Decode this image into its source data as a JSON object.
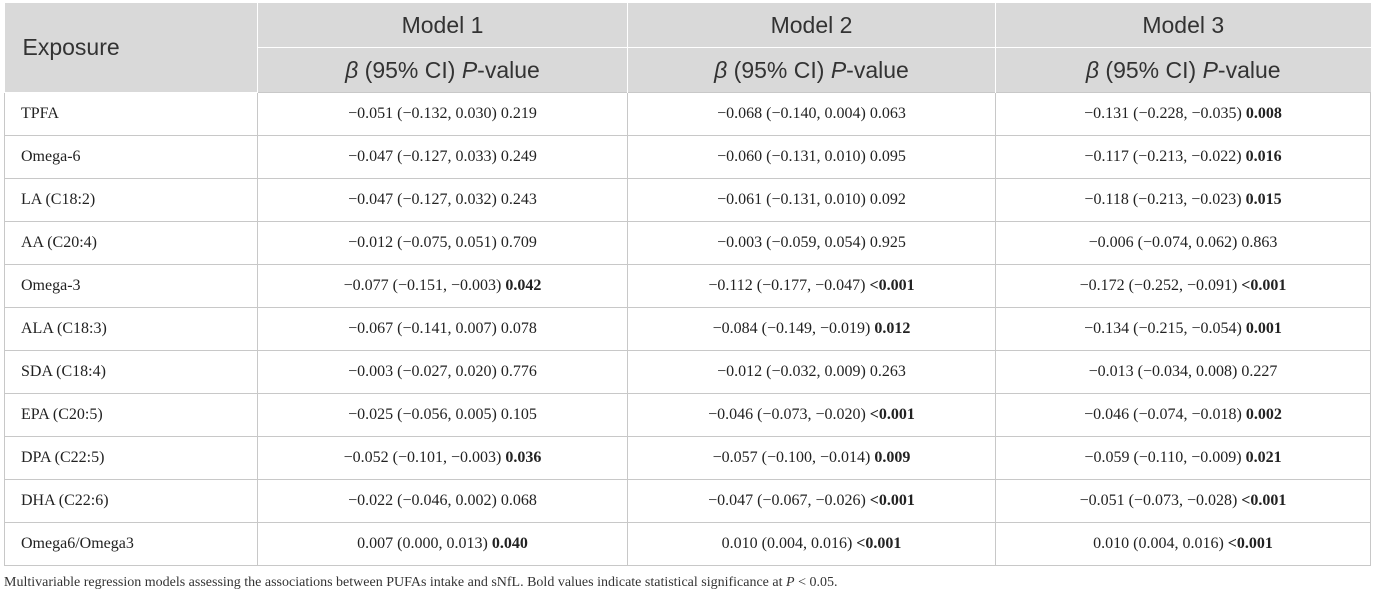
{
  "header": {
    "exposure": "Exposure",
    "models": [
      "Model 1",
      "Model 2",
      "Model 3"
    ],
    "sub_beta": "β",
    "sub_ci": " (95% CI) ",
    "sub_p": "P",
    "sub_value": "-value"
  },
  "rows": [
    {
      "exposure": "TPFA",
      "cells": [
        {
          "est": "−0.051 (−0.132, 0.030)",
          "p": "0.219",
          "sig": false
        },
        {
          "est": "−0.068 (−0.140, 0.004)",
          "p": "0.063",
          "sig": false
        },
        {
          "est": "−0.131 (−0.228, −0.035)",
          "p": "0.008",
          "sig": true
        }
      ]
    },
    {
      "exposure": "Omega-6",
      "cells": [
        {
          "est": "−0.047 (−0.127, 0.033)",
          "p": "0.249",
          "sig": false
        },
        {
          "est": "−0.060 (−0.131, 0.010)",
          "p": "0.095",
          "sig": false
        },
        {
          "est": "−0.117 (−0.213, −0.022)",
          "p": "0.016",
          "sig": true
        }
      ]
    },
    {
      "exposure": "LA (C18:2)",
      "cells": [
        {
          "est": "−0.047 (−0.127, 0.032)",
          "p": "0.243",
          "sig": false
        },
        {
          "est": "−0.061 (−0.131, 0.010)",
          "p": "0.092",
          "sig": false
        },
        {
          "est": "−0.118 (−0.213, −0.023)",
          "p": "0.015",
          "sig": true
        }
      ]
    },
    {
      "exposure": "AA (C20:4)",
      "cells": [
        {
          "est": "−0.012 (−0.075, 0.051)",
          "p": "0.709",
          "sig": false
        },
        {
          "est": "−0.003 (−0.059, 0.054)",
          "p": "0.925",
          "sig": false
        },
        {
          "est": "−0.006 (−0.074, 0.062)",
          "p": "0.863",
          "sig": false
        }
      ]
    },
    {
      "exposure": "Omega-3",
      "cells": [
        {
          "est": "−0.077 (−0.151, −0.003)",
          "p": "0.042",
          "sig": true
        },
        {
          "est": "−0.112 (−0.177, −0.047)",
          "p": "<0.001",
          "sig": true
        },
        {
          "est": "−0.172 (−0.252, −0.091)",
          "p": "<0.001",
          "sig": true
        }
      ]
    },
    {
      "exposure": "ALA (C18:3)",
      "cells": [
        {
          "est": "−0.067 (−0.141, 0.007)",
          "p": "0.078",
          "sig": false
        },
        {
          "est": "−0.084 (−0.149, −0.019)",
          "p": "0.012",
          "sig": true
        },
        {
          "est": "−0.134 (−0.215, −0.054)",
          "p": "0.001",
          "sig": true
        }
      ]
    },
    {
      "exposure": "SDA (C18:4)",
      "cells": [
        {
          "est": "−0.003 (−0.027, 0.020)",
          "p": "0.776",
          "sig": false
        },
        {
          "est": "−0.012 (−0.032, 0.009)",
          "p": "0.263",
          "sig": false
        },
        {
          "est": "−0.013 (−0.034, 0.008)",
          "p": "0.227",
          "sig": false
        }
      ]
    },
    {
      "exposure": "EPA (C20:5)",
      "cells": [
        {
          "est": "−0.025 (−0.056, 0.005)",
          "p": "0.105",
          "sig": false
        },
        {
          "est": "−0.046 (−0.073, −0.020)",
          "p": "<0.001",
          "sig": true
        },
        {
          "est": "−0.046 (−0.074, −0.018)",
          "p": "0.002",
          "sig": true
        }
      ]
    },
    {
      "exposure": "DPA (C22:5)",
      "cells": [
        {
          "est": "−0.052 (−0.101, −0.003)",
          "p": "0.036",
          "sig": true
        },
        {
          "est": "−0.057 (−0.100, −0.014)",
          "p": "0.009",
          "sig": true
        },
        {
          "est": "−0.059 (−0.110, −0.009)",
          "p": "0.021",
          "sig": true
        }
      ]
    },
    {
      "exposure": "DHA (C22:6)",
      "cells": [
        {
          "est": "−0.022 (−0.046, 0.002)",
          "p": "0.068",
          "sig": false
        },
        {
          "est": "−0.047 (−0.067, −0.026)",
          "p": "<0.001",
          "sig": true
        },
        {
          "est": "−0.051 (−0.073, −0.028)",
          "p": "<0.001",
          "sig": true
        }
      ]
    },
    {
      "exposure": "Omega6/Omega3",
      "cells": [
        {
          "est": "0.007 (0.000, 0.013)",
          "p": "0.040",
          "sig": true
        },
        {
          "est": "0.010 (0.004, 0.016)",
          "p": "<0.001",
          "sig": true
        },
        {
          "est": "0.010 (0.004, 0.016)",
          "p": "<0.001",
          "sig": true
        }
      ]
    }
  ],
  "footnote": {
    "text": "Multivariable regression models assessing the associations between PUFAs intake and sNfL. Bold values indicate statistical significance at ",
    "p": "P",
    "tail": " < 0.05."
  },
  "colors": {
    "header_bg": "#d9d9d9",
    "header_text": "#333333",
    "border": "#c8c8c8"
  }
}
